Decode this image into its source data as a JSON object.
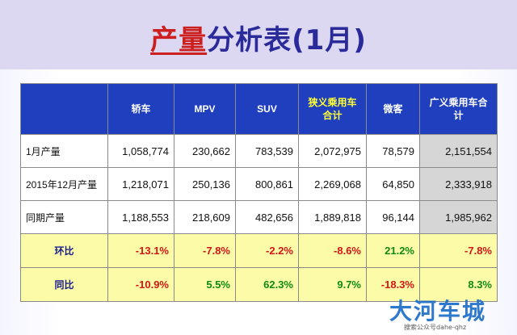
{
  "title": {
    "part1": "产量",
    "part2": "分析表(1月)"
  },
  "table": {
    "headers": [
      "",
      "轿车",
      "MPV",
      "SUV",
      "狭义乘用车合计",
      "微客",
      "广义乘用车合计"
    ],
    "rows": [
      {
        "label": "1月产量",
        "cells": [
          "1,058,774",
          "230,662",
          "783,539",
          "2,072,975",
          "78,579",
          "2,151,554"
        ]
      },
      {
        "label": "2015年12月产量",
        "cells": [
          "1,218,071",
          "250,136",
          "800,861",
          "2,269,068",
          "64,850",
          "2,333,918"
        ]
      },
      {
        "label": "同期产量",
        "cells": [
          "1,188,553",
          "218,609",
          "482,656",
          "1,889,818",
          "96,144",
          "1,985,962"
        ]
      },
      {
        "label": "环比",
        "cells": [
          "-13.1%",
          "-7.8%",
          "-2.2%",
          "-8.6%",
          "21.2%",
          "-7.8%"
        ]
      },
      {
        "label": "同比",
        "cells": [
          "-10.9%",
          "5.5%",
          "62.3%",
          "9.7%",
          "-18.3%",
          "8.3%"
        ]
      }
    ]
  },
  "colors": {
    "header_bg": "#1f3fbf",
    "header_highlight_text": "#ffff33",
    "pct_row_bg": "#fbfba8",
    "negative": "#d41616",
    "positive": "#128a12",
    "title_red": "#cc1f1f",
    "title_blue": "#2a2a9a"
  },
  "watermark": {
    "main": "大河车城",
    "sub": "搜索公众号dahe-qhz"
  }
}
